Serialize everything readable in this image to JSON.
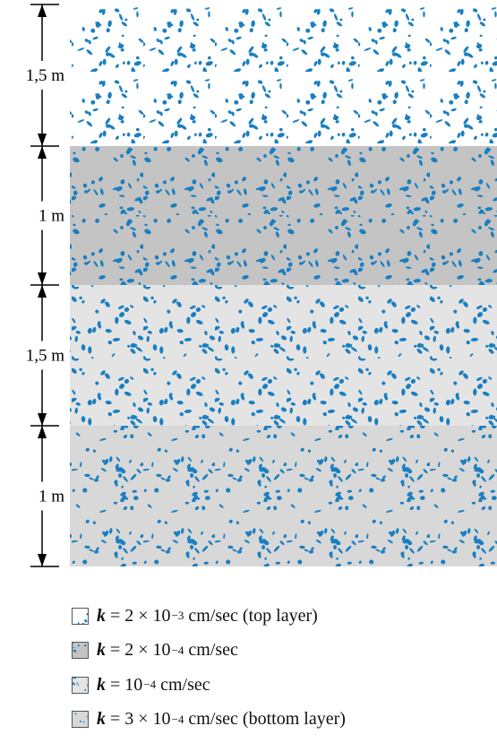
{
  "layers": [
    {
      "thickness": "1,5 m"
    },
    {
      "thickness": "1 m"
    },
    {
      "thickness": "1,5 m"
    },
    {
      "thickness": "1 m"
    }
  ],
  "legend": [
    {
      "variable": "k",
      "expression": "= 2 × 10",
      "exponent": "−3",
      "suffix": "cm/sec (top layer)"
    },
    {
      "variable": "k",
      "expression": "= 2 × 10",
      "exponent": "−4",
      "suffix": "cm/sec"
    },
    {
      "variable": "k",
      "expression": "= 10",
      "exponent": "−4",
      "suffix": "cm/sec"
    },
    {
      "variable": "k",
      "expression": "= 3 × 10",
      "exponent": "−4",
      "suffix": "cm/sec (bottom layer)"
    }
  ]
}
